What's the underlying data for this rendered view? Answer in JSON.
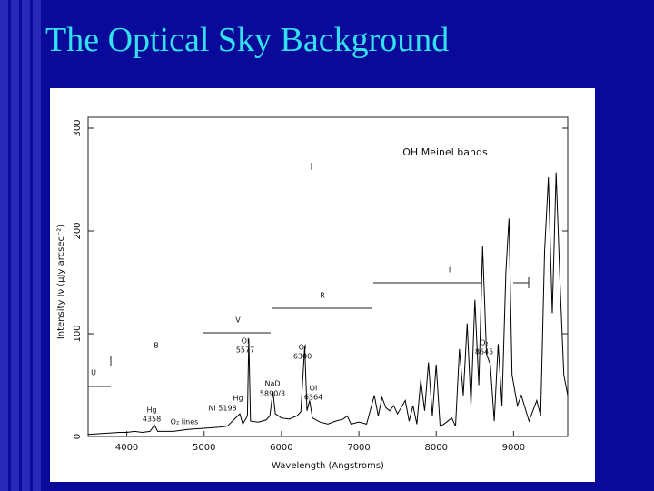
{
  "title": "The Optical Sky Background",
  "chart_data": {
    "type": "line",
    "xlabel": "Wavelength (Angstroms)",
    "ylabel": "Intensity Iν (μJy arcsec⁻²)",
    "xlim": [
      3500,
      9700
    ],
    "xticks": [
      4000,
      5000,
      6000,
      7000,
      8000,
      9000
    ],
    "ylim": [
      0,
      300
    ],
    "yticks": [
      0,
      100,
      200,
      300
    ],
    "color": "#000000",
    "annotations": [
      "OH Meinel bands",
      "U",
      "B",
      "V",
      "R",
      "I",
      "Hg",
      "4358",
      "OI",
      "5577",
      "OI",
      "6300",
      "NaD",
      "5890/3",
      "Hg",
      "NI 5198",
      "OI",
      "6364",
      "O₂ lines",
      "O₂",
      "8645"
    ],
    "x": [
      3500,
      3700,
      3900,
      4000,
      4100,
      4200,
      4300,
      4358,
      4400,
      4600,
      4800,
      5000,
      5200,
      5300,
      5461,
      5500,
      5560,
      5577,
      5600,
      5700,
      5800,
      5850,
      5890,
      5920,
      6000,
      6100,
      6200,
      6250,
      6300,
      6330,
      6364,
      6400,
      6500,
      6600,
      6700,
      6800,
      6850,
      6900,
      7000,
      7100,
      7200,
      7250,
      7300,
      7350,
      7400,
      7450,
      7500,
      7600,
      7650,
      7700,
      7750,
      7800,
      7850,
      7900,
      7950,
      8000,
      8050,
      8100,
      8200,
      8250,
      8300,
      8350,
      8400,
      8450,
      8500,
      8550,
      8600,
      8650,
      8700,
      8750,
      8800,
      8850,
      8900,
      8940,
      8980,
      9050,
      9100,
      9200,
      9300,
      9350,
      9400,
      9450,
      9500,
      9550,
      9600,
      9650,
      9700
    ],
    "values": [
      2,
      3,
      4,
      4,
      5,
      4,
      5,
      11,
      5,
      5,
      7,
      8,
      9,
      10,
      22,
      12,
      20,
      95,
      15,
      14,
      16,
      20,
      44,
      22,
      18,
      17,
      20,
      24,
      88,
      25,
      35,
      18,
      14,
      12,
      15,
      17,
      20,
      12,
      14,
      12,
      40,
      20,
      38,
      28,
      25,
      30,
      22,
      35,
      15,
      30,
      12,
      55,
      25,
      72,
      20,
      70,
      10,
      12,
      18,
      10,
      85,
      40,
      110,
      30,
      133,
      50,
      185,
      80,
      70,
      15,
      90,
      30,
      160,
      212,
      60,
      30,
      40,
      15,
      35,
      20,
      180,
      252,
      120,
      257,
      150,
      60,
      40
    ]
  }
}
